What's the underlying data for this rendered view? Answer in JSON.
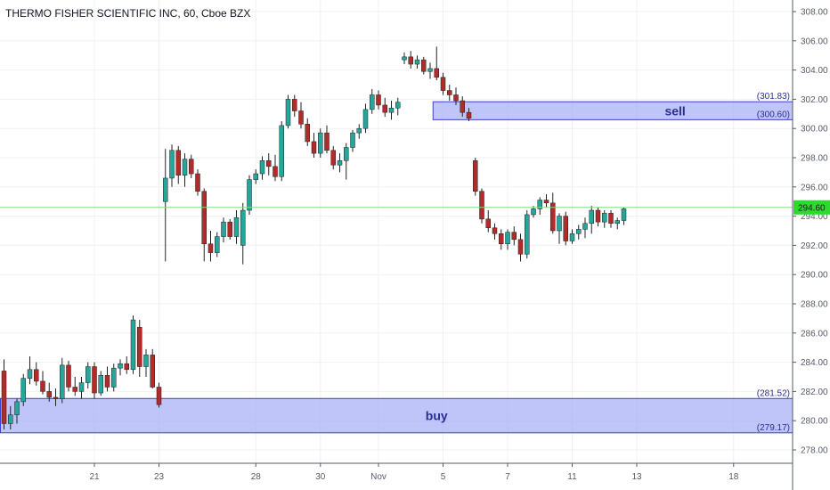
{
  "header": {
    "title": "THERMO FISHER SCIENTIFIC INC, 60, Cboe BZX"
  },
  "colors": {
    "up": "#26a69a",
    "down": "#b22b2b",
    "zone_fill": "#aab0f7",
    "zone_border": "#3a43c9",
    "price_line": "#7ee07e",
    "price_tag": "#2eda2e"
  },
  "chart_data": {
    "type": "candlestick",
    "y_ticks": [
      "308.00",
      "306.00",
      "304.00",
      "302.00",
      "300.00",
      "298.00",
      "296.00",
      "294.00",
      "292.00",
      "290.00",
      "288.00",
      "286.00",
      "284.00",
      "282.00",
      "280.00",
      "278.00"
    ],
    "y_tick_values": [
      308,
      306,
      304,
      302,
      300,
      298,
      296,
      294,
      292,
      290,
      288,
      286,
      284,
      282,
      280,
      278
    ],
    "x_ticks": [
      {
        "label": "21",
        "bar": 14
      },
      {
        "label": "23",
        "bar": 24
      },
      {
        "label": "28",
        "bar": 39
      },
      {
        "label": "30",
        "bar": 49
      },
      {
        "label": "Nov",
        "bar": 58
      },
      {
        "label": "5",
        "bar": 68
      },
      {
        "label": "7",
        "bar": 78
      },
      {
        "label": "11",
        "bar": 88
      },
      {
        "label": "13",
        "bar": 98
      },
      {
        "label": "18",
        "bar": 113
      }
    ],
    "ylim": [
      277,
      309
    ],
    "current_price": {
      "value": 294.6,
      "label": "294.60"
    },
    "zones": [
      {
        "name": "sell",
        "high": 301.83,
        "low": 300.6,
        "high_label": "(301.83)",
        "low_label": "(300.60)",
        "start_bar": 67
      },
      {
        "name": "buy",
        "high": 281.52,
        "low": 279.17,
        "high_label": "(281.52)",
        "low_label": "(279.17)",
        "start_bar": 0
      }
    ],
    "candles": [
      [
        283.4,
        284.2,
        279.4,
        279.8
      ],
      [
        279.8,
        281.0,
        279.4,
        280.4
      ],
      [
        280.4,
        281.5,
        279.8,
        281.3
      ],
      [
        281.3,
        283.2,
        281.0,
        282.9
      ],
      [
        282.9,
        284.4,
        282.5,
        283.5
      ],
      [
        283.5,
        284.0,
        282.4,
        282.7
      ],
      [
        282.7,
        283.4,
        281.8,
        282.0
      ],
      [
        282.0,
        282.6,
        281.3,
        281.6
      ],
      [
        281.6,
        282.2,
        281.0,
        281.5
      ],
      [
        281.5,
        284.3,
        281.2,
        283.8
      ],
      [
        283.8,
        284.1,
        282.0,
        282.3
      ],
      [
        282.3,
        283.0,
        281.7,
        282.0
      ],
      [
        282.0,
        283.0,
        281.5,
        282.6
      ],
      [
        282.6,
        284.0,
        282.2,
        283.7
      ],
      [
        283.7,
        284.0,
        281.5,
        281.9
      ],
      [
        281.9,
        283.4,
        281.7,
        283.1
      ],
      [
        283.1,
        283.7,
        282.0,
        282.3
      ],
      [
        282.3,
        283.9,
        282.0,
        283.6
      ],
      [
        283.6,
        284.2,
        283.1,
        283.9
      ],
      [
        283.9,
        284.4,
        283.2,
        283.5
      ],
      [
        283.5,
        287.2,
        283.2,
        286.9
      ],
      [
        286.4,
        286.9,
        283.0,
        283.7
      ],
      [
        283.7,
        284.9,
        283.0,
        284.5
      ],
      [
        284.5,
        284.9,
        282.2,
        282.3
      ],
      [
        282.3,
        282.6,
        280.9,
        281.1
      ],
      [
        295.0,
        298.6,
        290.9,
        296.6
      ],
      [
        296.6,
        298.9,
        296.0,
        298.5
      ],
      [
        298.5,
        298.8,
        296.2,
        296.8
      ],
      [
        296.8,
        298.3,
        296.0,
        297.9
      ],
      [
        297.9,
        298.2,
        296.6,
        296.9
      ],
      [
        296.9,
        297.2,
        295.4,
        295.7
      ],
      [
        295.7,
        295.9,
        290.9,
        292.1
      ],
      [
        292.1,
        293.0,
        290.9,
        291.5
      ],
      [
        291.5,
        292.9,
        291.2,
        292.6
      ],
      [
        292.6,
        293.9,
        292.2,
        293.6
      ],
      [
        293.6,
        293.8,
        292.4,
        292.6
      ],
      [
        292.6,
        294.4,
        292.1,
        293.9
      ],
      [
        292.0,
        294.9,
        290.7,
        294.4
      ],
      [
        294.4,
        296.8,
        294.1,
        296.5
      ],
      [
        296.5,
        297.2,
        296.2,
        296.9
      ],
      [
        296.9,
        298.1,
        296.5,
        297.8
      ],
      [
        297.8,
        298.3,
        296.8,
        297.4
      ],
      [
        297.4,
        298.2,
        296.4,
        296.7
      ],
      [
        296.7,
        300.5,
        296.4,
        300.2
      ],
      [
        300.2,
        302.3,
        300.0,
        302.0
      ],
      [
        302.0,
        302.3,
        300.8,
        301.2
      ],
      [
        301.2,
        301.8,
        300.0,
        300.3
      ],
      [
        300.3,
        300.7,
        298.8,
        299.1
      ],
      [
        299.1,
        299.7,
        298.0,
        298.3
      ],
      [
        298.3,
        300.0,
        298.0,
        299.7
      ],
      [
        299.7,
        300.2,
        298.3,
        298.5
      ],
      [
        298.5,
        298.8,
        297.2,
        297.5
      ],
      [
        297.5,
        298.3,
        297.0,
        297.8
      ],
      [
        297.8,
        299.0,
        296.5,
        298.7
      ],
      [
        298.7,
        299.9,
        298.4,
        299.7
      ],
      [
        299.7,
        300.3,
        299.3,
        300.0
      ],
      [
        300.0,
        301.7,
        299.7,
        301.3
      ],
      [
        301.3,
        302.7,
        301.0,
        302.3
      ],
      [
        302.3,
        302.6,
        301.3,
        301.6
      ],
      [
        301.6,
        302.1,
        300.8,
        301.1
      ],
      [
        301.1,
        301.9,
        300.6,
        301.4
      ],
      [
        301.4,
        302.1,
        300.9,
        301.8
      ],
      [
        304.7,
        305.2,
        304.4,
        304.9
      ],
      [
        304.9,
        305.3,
        304.1,
        304.4
      ],
      [
        304.4,
        305.0,
        304.1,
        304.7
      ],
      [
        304.7,
        304.9,
        303.7,
        303.9
      ],
      [
        303.9,
        304.5,
        303.4,
        304.1
      ],
      [
        304.1,
        305.6,
        303.3,
        303.5
      ],
      [
        303.5,
        303.8,
        302.3,
        302.6
      ],
      [
        302.6,
        303.0,
        301.9,
        302.3
      ],
      [
        302.3,
        302.8,
        301.6,
        301.9
      ],
      [
        301.9,
        302.2,
        300.8,
        301.1
      ],
      [
        301.1,
        301.4,
        300.5,
        300.7
      ],
      [
        297.8,
        298.0,
        295.4,
        295.7
      ],
      [
        295.7,
        295.9,
        293.5,
        293.8
      ],
      [
        293.8,
        294.4,
        292.9,
        293.2
      ],
      [
        293.2,
        293.5,
        292.4,
        292.8
      ],
      [
        292.8,
        293.1,
        291.7,
        292.1
      ],
      [
        292.1,
        293.1,
        291.7,
        292.9
      ],
      [
        292.9,
        293.3,
        292.0,
        292.4
      ],
      [
        292.4,
        292.8,
        290.9,
        291.4
      ],
      [
        291.4,
        294.4,
        291.1,
        294.1
      ],
      [
        294.1,
        294.7,
        293.9,
        294.5
      ],
      [
        294.5,
        295.3,
        294.1,
        295.1
      ],
      [
        295.1,
        295.5,
        294.6,
        294.9
      ],
      [
        294.9,
        295.6,
        292.8,
        293.0
      ],
      [
        293.0,
        294.2,
        292.1,
        294.0
      ],
      [
        294.0,
        294.3,
        292.0,
        292.3
      ],
      [
        292.3,
        293.1,
        292.1,
        292.8
      ],
      [
        292.8,
        293.4,
        292.4,
        293.1
      ],
      [
        293.1,
        293.9,
        292.5,
        293.5
      ],
      [
        293.5,
        294.7,
        292.8,
        294.4
      ],
      [
        294.4,
        294.6,
        293.3,
        293.6
      ],
      [
        293.6,
        294.4,
        293.2,
        294.2
      ],
      [
        294.2,
        294.4,
        293.2,
        293.5
      ],
      [
        293.5,
        293.9,
        293.1,
        293.7
      ],
      [
        293.7,
        294.6,
        293.4,
        294.5
      ]
    ]
  }
}
